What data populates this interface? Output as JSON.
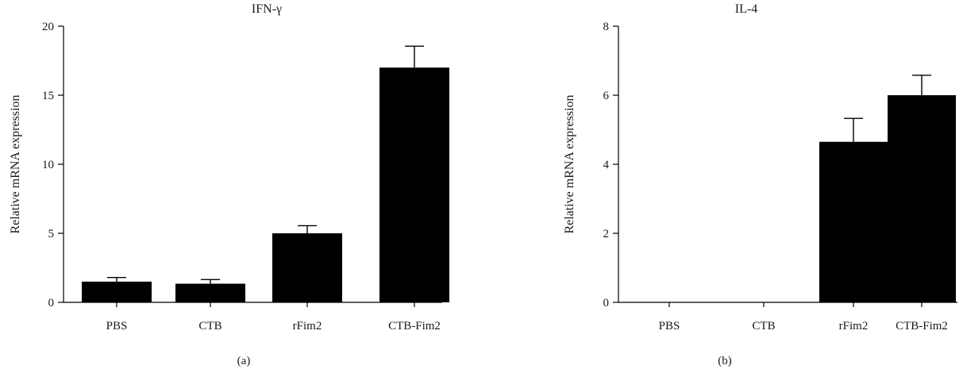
{
  "chart_data": [
    {
      "type": "bar",
      "title": "IFN-γ",
      "panel_label": "(a)",
      "xlabel": "",
      "ylabel": "Relative mRNA expression",
      "categories": [
        "PBS",
        "CTB",
        "rFim2",
        "CTB-Fim2"
      ],
      "values": [
        1.5,
        1.35,
        5.0,
        17.0
      ],
      "error": [
        0.3,
        0.3,
        0.55,
        1.55
      ],
      "ylim": [
        0,
        20
      ],
      "yticks": [
        "0",
        "5",
        "10",
        "15",
        "20"
      ],
      "grid": false,
      "bar_color": "#000000"
    },
    {
      "type": "bar",
      "title": "IL-4",
      "panel_label": "(b)",
      "xlabel": "",
      "ylabel": "Relative mRNA expression",
      "categories": [
        "PBS",
        "CTB",
        "rFim2",
        "CTB-Fim2"
      ],
      "values": [
        0,
        0,
        4.65,
        6.0
      ],
      "error": [
        0,
        0,
        0.68,
        0.58
      ],
      "ylim": [
        0,
        8
      ],
      "yticks": [
        "0",
        "2",
        "4",
        "6",
        "8"
      ],
      "grid": false,
      "bar_color": "#000000"
    }
  ]
}
